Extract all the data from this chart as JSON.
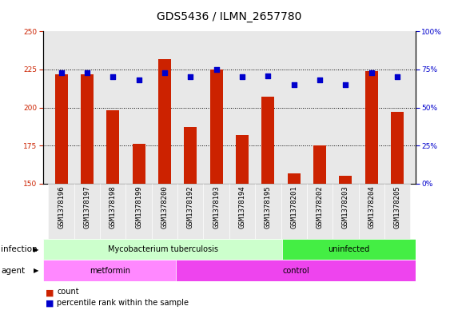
{
  "title": "GDS5436 / ILMN_2657780",
  "samples": [
    "GSM1378196",
    "GSM1378197",
    "GSM1378198",
    "GSM1378199",
    "GSM1378200",
    "GSM1378192",
    "GSM1378193",
    "GSM1378194",
    "GSM1378195",
    "GSM1378201",
    "GSM1378202",
    "GSM1378203",
    "GSM1378204",
    "GSM1378205"
  ],
  "bar_values": [
    222,
    222,
    198,
    176,
    232,
    187,
    225,
    182,
    207,
    157,
    175,
    155,
    224,
    197
  ],
  "dot_values": [
    73,
    73,
    70,
    68,
    73,
    70,
    75,
    70,
    71,
    65,
    68,
    65,
    73,
    70
  ],
  "ylim_left": [
    150,
    250
  ],
  "ylim_right": [
    0,
    100
  ],
  "yticks_left": [
    150,
    175,
    200,
    225,
    250
  ],
  "yticks_right": [
    0,
    25,
    50,
    75,
    100
  ],
  "bar_color": "#cc2200",
  "dot_color": "#0000cc",
  "bar_width": 0.5,
  "infection_groups": [
    {
      "label": "Mycobacterium tuberculosis",
      "start": 0,
      "end": 9,
      "color": "#ccffcc"
    },
    {
      "label": "uninfected",
      "start": 9,
      "end": 14,
      "color": "#44ee44"
    }
  ],
  "agent_groups": [
    {
      "label": "metformin",
      "start": 0,
      "end": 5,
      "color": "#ff88ff"
    },
    {
      "label": "control",
      "start": 5,
      "end": 14,
      "color": "#ee44ee"
    }
  ],
  "infection_label": "infection",
  "agent_label": "agent",
  "legend_count_label": "count",
  "legend_pct_label": "percentile rank within the sample",
  "bg_color": "#e8e8e8",
  "title_fontsize": 10,
  "tick_fontsize": 6.5,
  "annotation_fontsize": 7.5
}
